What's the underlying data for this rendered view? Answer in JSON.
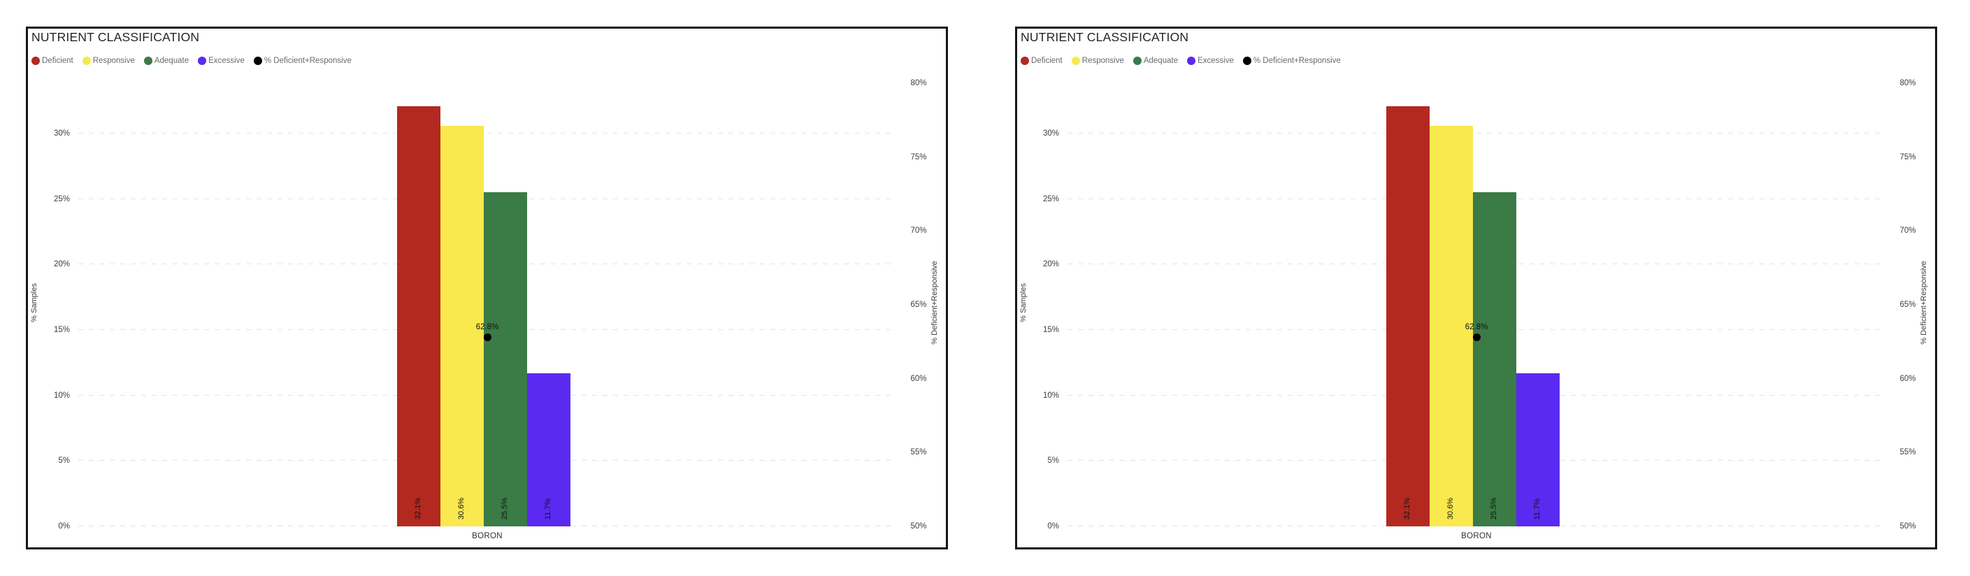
{
  "page": {
    "background": "#ffffff"
  },
  "chart_data": [
    {
      "type": "bar",
      "title": "NUTRIENT CLASSIFICATION",
      "xlabel": "BORON",
      "categories": [
        "BORON"
      ],
      "series": [
        {
          "name": "Deficient",
          "value": 32.1,
          "label": "32.1%",
          "color": "#b3291f"
        },
        {
          "name": "Responsive",
          "value": 30.6,
          "label": "30.6%",
          "color": "#f9e84e"
        },
        {
          "name": "Adequate",
          "value": 25.5,
          "label": "25.5%",
          "color": "#3a7b46"
        },
        {
          "name": "Excessive",
          "value": 11.7,
          "label": "11.7%",
          "color": "#5a2af0"
        }
      ],
      "point_series": {
        "name": "% Deficient+Responsive",
        "value": 62.8,
        "label": "62.8%",
        "color": "#000000",
        "axis": "right"
      },
      "left_axis": {
        "title": "% Samples",
        "min": 0,
        "max": 30,
        "tick_step": 5,
        "ticks": [
          "0%",
          "5%",
          "10%",
          "15%",
          "20%",
          "25%",
          "30%"
        ]
      },
      "right_axis": {
        "title": "% Deficient+Responsive",
        "min": 50,
        "max": 80,
        "tick_step": 5,
        "ticks": [
          "50%",
          "55%",
          "60%",
          "65%",
          "70%",
          "75%",
          "80%"
        ]
      },
      "legend": [
        {
          "label": "Deficient",
          "color": "#b3291f"
        },
        {
          "label": "Responsive",
          "color": "#f9e84e"
        },
        {
          "label": "Adequate",
          "color": "#3a7b46"
        },
        {
          "label": "Excessive",
          "color": "#5a2af0"
        },
        {
          "label": "% Deficient+Responsive",
          "color": "#000000"
        }
      ],
      "grid": "dashed-horizontal",
      "legend_position": "top-left"
    },
    {
      "type": "bar",
      "title": "NUTRIENT CLASSIFICATION",
      "xlabel": "BORON",
      "categories": [
        "BORON"
      ],
      "series": [
        {
          "name": "Deficient",
          "value": 32.1,
          "label": "32.1%",
          "color": "#b3291f"
        },
        {
          "name": "Responsive",
          "value": 30.6,
          "label": "30.6%",
          "color": "#f9e84e"
        },
        {
          "name": "Adequate",
          "value": 25.5,
          "label": "25.5%",
          "color": "#3a7b46"
        },
        {
          "name": "Excessive",
          "value": 11.7,
          "label": "11.7%",
          "color": "#5a2af0"
        }
      ],
      "point_series": {
        "name": "% Deficient+Responsive",
        "value": 62.8,
        "label": "62.8%",
        "color": "#000000",
        "axis": "right"
      },
      "left_axis": {
        "title": "% Samples",
        "min": 0,
        "max": 30,
        "tick_step": 5,
        "ticks": [
          "0%",
          "5%",
          "10%",
          "15%",
          "20%",
          "25%",
          "30%"
        ]
      },
      "right_axis": {
        "title": "% Deficient+Responsive",
        "min": 50,
        "max": 80,
        "tick_step": 5,
        "ticks": [
          "50%",
          "55%",
          "60%",
          "65%",
          "70%",
          "75%",
          "80%"
        ]
      },
      "legend": [
        {
          "label": "Deficient",
          "color": "#b3291f"
        },
        {
          "label": "Responsive",
          "color": "#f9e84e"
        },
        {
          "label": "Adequate",
          "color": "#3a7b46"
        },
        {
          "label": "Excessive",
          "color": "#5a2af0"
        },
        {
          "label": "% Deficient+Responsive",
          "color": "#000000"
        }
      ],
      "grid": "dashed-horizontal",
      "legend_position": "top-left"
    }
  ]
}
